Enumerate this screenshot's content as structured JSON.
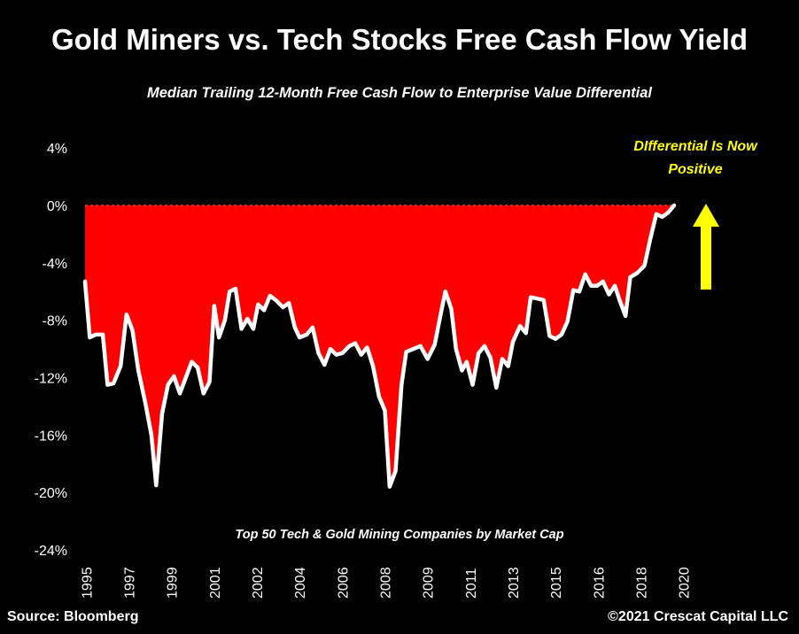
{
  "chart_data": {
    "type": "area",
    "title": "Gold Miners vs. Tech Stocks Free Cash Flow Yield",
    "subtitle": "Median Trailing 12-Month Free Cash Flow to Enterprise Value Differential",
    "annotation": "DIfferential Is Now Positive",
    "footnote": "Top 50 Tech & Gold Mining Companies by Market Cap",
    "ylim": [
      -24,
      4
    ],
    "y_ticks": [
      "4%",
      "0%",
      "-4%",
      "-8%",
      "-12%",
      "-16%",
      "-20%",
      "-24%"
    ],
    "y_tick_values": [
      4,
      0,
      -4,
      -8,
      -12,
      -16,
      -20,
      -24
    ],
    "x_ticks": [
      {
        "label": "1995",
        "t": 1995.0
      },
      {
        "label": "1997",
        "t": 1996.8
      },
      {
        "label": "1999",
        "t": 1998.6
      },
      {
        "label": "2001",
        "t": 2000.4
      },
      {
        "label": "2002",
        "t": 2002.2
      },
      {
        "label": "2004",
        "t": 2004.0
      },
      {
        "label": "2006",
        "t": 2005.8
      },
      {
        "label": "2008",
        "t": 2007.6
      },
      {
        "label": "2009",
        "t": 2009.4
      },
      {
        "label": "2011",
        "t": 2011.2
      },
      {
        "label": "2013",
        "t": 2013.0
      },
      {
        "label": "2015",
        "t": 2014.8
      },
      {
        "label": "2016",
        "t": 2016.6
      },
      {
        "label": "2018",
        "t": 2018.4
      },
      {
        "label": "2020",
        "t": 2020.2
      }
    ],
    "xlim": [
      1994.7,
      2022.8
    ],
    "series_color": "#ff0000",
    "line_color": "#ffffff",
    "arrow_color": "#ffff00",
    "points": [
      [
        1994.95,
        -5.3
      ],
      [
        1995.15,
        -9.2
      ],
      [
        1995.4,
        -9.0
      ],
      [
        1995.7,
        -9.0
      ],
      [
        1995.9,
        -12.5
      ],
      [
        1996.15,
        -12.4
      ],
      [
        1996.45,
        -11.2
      ],
      [
        1996.7,
        -7.6
      ],
      [
        1996.95,
        -8.7
      ],
      [
        1997.2,
        -11.5
      ],
      [
        1997.5,
        -13.8
      ],
      [
        1997.75,
        -16.0
      ],
      [
        1997.95,
        -19.5
      ],
      [
        1998.2,
        -14.5
      ],
      [
        1998.45,
        -12.5
      ],
      [
        1998.7,
        -11.9
      ],
      [
        1998.95,
        -13.1
      ],
      [
        1999.2,
        -12.0
      ],
      [
        1999.45,
        -10.9
      ],
      [
        1999.7,
        -11.3
      ],
      [
        1999.95,
        -13.1
      ],
      [
        2000.2,
        -12.3
      ],
      [
        2000.4,
        -7.0
      ],
      [
        2000.6,
        -9.2
      ],
      [
        2000.85,
        -8.0
      ],
      [
        2001.05,
        -6.0
      ],
      [
        2001.3,
        -5.8
      ],
      [
        2001.55,
        -8.6
      ],
      [
        2001.8,
        -7.9
      ],
      [
        2002.05,
        -8.6
      ],
      [
        2002.25,
        -6.9
      ],
      [
        2002.5,
        -7.3
      ],
      [
        2002.75,
        -6.3
      ],
      [
        2003.0,
        -6.6
      ],
      [
        2003.3,
        -7.1
      ],
      [
        2003.55,
        -6.8
      ],
      [
        2003.8,
        -8.5
      ],
      [
        2004.0,
        -9.2
      ],
      [
        2004.3,
        -9.0
      ],
      [
        2004.55,
        -8.5
      ],
      [
        2004.8,
        -10.3
      ],
      [
        2005.05,
        -11.1
      ],
      [
        2005.3,
        -10.0
      ],
      [
        2005.55,
        -10.4
      ],
      [
        2005.8,
        -10.3
      ],
      [
        2006.1,
        -9.8
      ],
      [
        2006.35,
        -9.6
      ],
      [
        2006.6,
        -10.4
      ],
      [
        2006.85,
        -9.9
      ],
      [
        2007.1,
        -11.2
      ],
      [
        2007.35,
        -13.3
      ],
      [
        2007.6,
        -14.3
      ],
      [
        2007.8,
        -19.6
      ],
      [
        2008.05,
        -18.5
      ],
      [
        2008.3,
        -12.5
      ],
      [
        2008.5,
        -10.2
      ],
      [
        2008.8,
        -10.0
      ],
      [
        2009.1,
        -9.8
      ],
      [
        2009.4,
        -10.7
      ],
      [
        2009.7,
        -9.7
      ],
      [
        2009.95,
        -7.6
      ],
      [
        2010.15,
        -6.0
      ],
      [
        2010.4,
        -7.2
      ],
      [
        2010.6,
        -10.0
      ],
      [
        2010.85,
        -11.5
      ],
      [
        2011.05,
        -10.9
      ],
      [
        2011.3,
        -12.5
      ],
      [
        2011.55,
        -10.3
      ],
      [
        2011.8,
        -9.8
      ],
      [
        2012.05,
        -10.6
      ],
      [
        2012.3,
        -12.7
      ],
      [
        2012.55,
        -10.7
      ],
      [
        2012.8,
        -11.2
      ],
      [
        2013.0,
        -9.5
      ],
      [
        2013.3,
        -8.4
      ],
      [
        2013.55,
        -8.9
      ],
      [
        2013.75,
        -6.4
      ],
      [
        2014.05,
        -6.5
      ],
      [
        2014.3,
        -6.6
      ],
      [
        2014.55,
        -9.1
      ],
      [
        2014.8,
        -9.3
      ],
      [
        2015.05,
        -9.0
      ],
      [
        2015.3,
        -8.1
      ],
      [
        2015.55,
        -5.9
      ],
      [
        2015.8,
        -6.0
      ],
      [
        2016.05,
        -4.8
      ],
      [
        2016.3,
        -5.6
      ],
      [
        2016.55,
        -5.6
      ],
      [
        2016.8,
        -5.3
      ],
      [
        2017.05,
        -6.2
      ],
      [
        2017.3,
        -5.6
      ],
      [
        2017.5,
        -6.6
      ],
      [
        2017.75,
        -7.7
      ],
      [
        2017.95,
        -5.0
      ],
      [
        2018.25,
        -4.7
      ],
      [
        2018.55,
        -4.2
      ],
      [
        2018.8,
        -2.3
      ],
      [
        2019.05,
        -0.6
      ],
      [
        2019.3,
        -0.8
      ],
      [
        2019.55,
        -0.5
      ],
      [
        2019.8,
        0.0
      ]
    ]
  },
  "footer": {
    "source": "Source: Bloomberg",
    "copyright": "©2021 Crescat Capital LLC"
  }
}
